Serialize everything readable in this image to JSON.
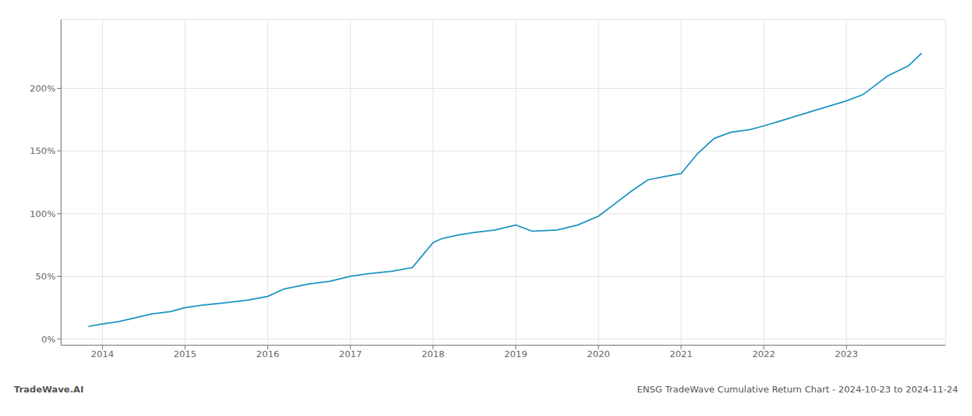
{
  "chart_data": {
    "type": "line",
    "title": "ENSG TradeWave Cumulative Return Chart - 2024-10-23 to 2024-11-24",
    "annotations": [
      "TradeWave.AI"
    ],
    "x": [
      2013.83,
      2014.0,
      2014.2,
      2014.4,
      2014.6,
      2014.83,
      2015.0,
      2015.2,
      2015.5,
      2015.75,
      2016.0,
      2016.2,
      2016.5,
      2016.75,
      2017.0,
      2017.2,
      2017.5,
      2017.75,
      2018.0,
      2018.1,
      2018.3,
      2018.5,
      2018.75,
      2019.0,
      2019.2,
      2019.5,
      2019.75,
      2020.0,
      2020.2,
      2020.4,
      2020.6,
      2020.83,
      2021.0,
      2021.2,
      2021.4,
      2021.6,
      2021.83,
      2022.0,
      2022.2,
      2022.5,
      2022.75,
      2023.0,
      2023.2,
      2023.5,
      2023.75,
      2023.91
    ],
    "values": [
      10,
      12,
      14,
      17,
      20,
      22,
      25,
      27,
      29,
      31,
      34,
      40,
      44,
      46,
      50,
      52,
      54,
      57,
      77,
      80,
      83,
      85,
      87,
      91,
      86,
      87,
      91,
      98,
      108,
      118,
      127,
      130,
      132,
      148,
      160,
      165,
      167,
      170,
      174,
      180,
      185,
      190,
      195,
      210,
      218,
      228
    ],
    "color": "#2196c4",
    "xlim": [
      2013.5,
      2024.2
    ],
    "ylim": [
      -5,
      255
    ],
    "xticks": [
      2014,
      2015,
      2016,
      2017,
      2018,
      2019,
      2020,
      2021,
      2022,
      2023
    ],
    "yticks": [
      {
        "value": 0,
        "label": "0%"
      },
      {
        "value": 50,
        "label": "50%"
      },
      {
        "value": 100,
        "label": "100%"
      },
      {
        "value": 150,
        "label": "150%"
      },
      {
        "value": 200,
        "label": "200%"
      }
    ],
    "grid": true
  }
}
